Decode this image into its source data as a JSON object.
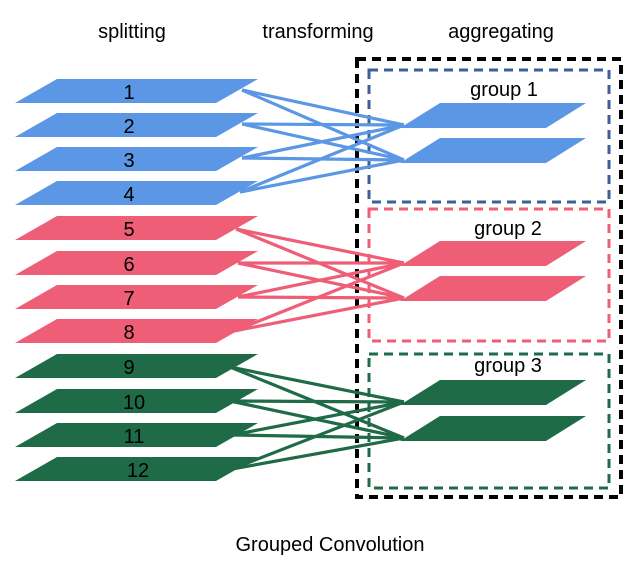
{
  "headers": {
    "splitting": "splitting",
    "transforming": "transforming",
    "aggregating": "aggregating"
  },
  "caption": "Grouped Convolution",
  "colors": {
    "blue": "#5b97e4",
    "red": "#ee5e77",
    "green": "#1f6b48",
    "blue_border": "#3d5f99",
    "red_border": "#ee5e77",
    "green_border": "#1f6b48",
    "outer_border": "#000000"
  },
  "groups": [
    {
      "label": "group 1",
      "color_key": "blue",
      "inputs": [
        "1",
        "2",
        "3",
        "4"
      ],
      "outputs": 2
    },
    {
      "label": "group 2",
      "color_key": "red",
      "inputs": [
        "5",
        "6",
        "7",
        "8"
      ],
      "outputs": 2
    },
    {
      "label": "group 3",
      "color_key": "green",
      "inputs": [
        "9",
        "10",
        "11",
        "12"
      ],
      "outputs": 2
    }
  ]
}
